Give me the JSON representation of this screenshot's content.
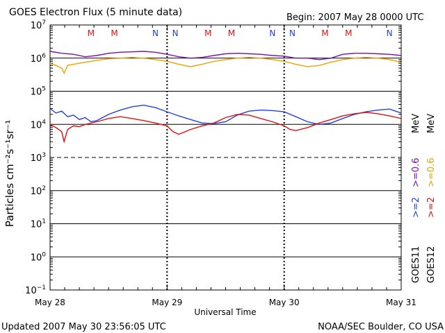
{
  "header": {
    "title": "GOES Electron Flux (5 minute data)",
    "begin": "Begin: 2007 May 28 0000 UTC"
  },
  "footer": {
    "updated": "Updated 2007 May 30 23:56:05 UTC",
    "credit": "NOAA/SEC Boulder, CO USA"
  },
  "colors": {
    "goes11_ge2": "#2040e0",
    "goes11_ge06": "#7a10a8",
    "goes12_ge2": "#e01010",
    "goes12_ge06": "#f0a000",
    "marker_M": "#e01010",
    "marker_N": "#2040e0"
  },
  "chart_data": {
    "type": "line",
    "title": "GOES Electron Flux (5 minute data)",
    "xlabel": "Universal Time",
    "ylabel": "Particles cm⁻²s⁻¹sr⁻¹",
    "y_scale": "log",
    "ylim": [
      0.1,
      10000000
    ],
    "y_tick_exponents": [
      -1,
      0,
      1,
      2,
      3,
      4,
      5,
      6,
      7
    ],
    "x_ticks": [
      "May 28",
      "May 29",
      "May 30",
      "May 31"
    ],
    "x_range_days": [
      0,
      3
    ],
    "grid": "horizontal decades, dashed at 10^3",
    "legend_position": "right, vertical",
    "legend_columns": [
      {
        "satellite": "GOES11",
        "ge2": ">=2",
        "ge06": ">=0.6",
        "unit": "MeV"
      },
      {
        "satellite": "GOES12",
        "ge2": ">=2",
        "ge06": ">=0.6",
        "unit": "MeV"
      }
    ],
    "markers": [
      {
        "day": 0.35,
        "label": "M"
      },
      {
        "day": 0.55,
        "label": "M"
      },
      {
        "day": 0.9,
        "label": "N"
      },
      {
        "day": 1.07,
        "label": "N"
      },
      {
        "day": 1.35,
        "label": "M"
      },
      {
        "day": 1.55,
        "label": "M"
      },
      {
        "day": 1.9,
        "label": "N"
      },
      {
        "day": 2.07,
        "label": "N"
      },
      {
        "day": 2.35,
        "label": "M"
      },
      {
        "day": 2.55,
        "label": "M"
      },
      {
        "day": 2.9,
        "label": "N"
      },
      {
        "day": 3.07,
        "label": "N"
      }
    ],
    "series": [
      {
        "name": "GOES11 >=2 MeV",
        "color": "#2040e0",
        "x": [
          0,
          0.05,
          0.1,
          0.15,
          0.2,
          0.25,
          0.3,
          0.35,
          0.4,
          0.5,
          0.6,
          0.7,
          0.8,
          0.9,
          1.0,
          1.1,
          1.2,
          1.3,
          1.4,
          1.5,
          1.6,
          1.7,
          1.8,
          1.9,
          2.0,
          2.1,
          2.2,
          2.3,
          2.4,
          2.5,
          2.6,
          2.7,
          2.8,
          2.9,
          3.0
        ],
        "y": [
          30000,
          22000,
          25000,
          17000,
          19000,
          14000,
          16000,
          12000,
          13000,
          20000,
          27000,
          34000,
          38000,
          32000,
          24000,
          18000,
          14000,
          11000,
          10500,
          12000,
          19000,
          25000,
          27000,
          26000,
          24000,
          17000,
          12000,
          10000,
          11000,
          15000,
          20000,
          24000,
          27000,
          29000,
          22000
        ]
      },
      {
        "name": "GOES11 >=0.6 MeV",
        "color": "#7a10a8",
        "x": [
          0,
          0.1,
          0.2,
          0.3,
          0.4,
          0.5,
          0.6,
          0.7,
          0.8,
          0.9,
          1.0,
          1.1,
          1.2,
          1.3,
          1.4,
          1.5,
          1.6,
          1.7,
          1.8,
          1.9,
          2.0,
          2.1,
          2.2,
          2.3,
          2.4,
          2.5,
          2.6,
          2.7,
          2.8,
          2.9,
          3.0
        ],
        "y": [
          1600000,
          1400000,
          1300000,
          1100000,
          1200000,
          1400000,
          1500000,
          1550000,
          1600000,
          1500000,
          1300000,
          1100000,
          1000000,
          1050000,
          1200000,
          1350000,
          1400000,
          1350000,
          1300000,
          1200000,
          1150000,
          1000000,
          1000000,
          900000,
          1000000,
          1300000,
          1400000,
          1400000,
          1350000,
          1300000,
          1200000
        ]
      },
      {
        "name": "GOES12 >=2 MeV",
        "color": "#e01010",
        "x": [
          0,
          0.05,
          0.1,
          0.12,
          0.15,
          0.2,
          0.25,
          0.3,
          0.4,
          0.5,
          0.6,
          0.7,
          0.8,
          0.9,
          1.0,
          1.05,
          1.1,
          1.2,
          1.3,
          1.4,
          1.5,
          1.6,
          1.7,
          1.8,
          1.9,
          2.0,
          2.05,
          2.1,
          2.2,
          2.3,
          2.4,
          2.5,
          2.6,
          2.7,
          2.8,
          2.9,
          3.0
        ],
        "y": [
          10000,
          8000,
          6000,
          3000,
          7000,
          9000,
          8500,
          10000,
          12000,
          15000,
          17000,
          15000,
          13000,
          11000,
          9000,
          6000,
          5000,
          7000,
          9000,
          11000,
          16000,
          20000,
          19000,
          15000,
          12000,
          9000,
          7000,
          6500,
          8000,
          11000,
          14000,
          18000,
          21000,
          23000,
          21000,
          18000,
          15000
        ]
      },
      {
        "name": "GOES12 >=0.6 MeV",
        "color": "#f0a000",
        "x": [
          0,
          0.05,
          0.1,
          0.12,
          0.15,
          0.2,
          0.3,
          0.4,
          0.5,
          0.6,
          0.7,
          0.8,
          0.9,
          1.0,
          1.1,
          1.2,
          1.3,
          1.4,
          1.5,
          1.6,
          1.7,
          1.8,
          1.9,
          2.0,
          2.1,
          2.2,
          2.3,
          2.4,
          2.5,
          2.6,
          2.7,
          2.8,
          2.9,
          3.0
        ],
        "y": [
          700000,
          600000,
          500000,
          350000,
          600000,
          650000,
          750000,
          850000,
          950000,
          1000000,
          1050000,
          1000000,
          900000,
          800000,
          650000,
          550000,
          650000,
          800000,
          900000,
          1000000,
          1050000,
          1000000,
          900000,
          800000,
          650000,
          550000,
          600000,
          750000,
          900000,
          1000000,
          1050000,
          1000000,
          900000,
          750000
        ]
      }
    ]
  }
}
